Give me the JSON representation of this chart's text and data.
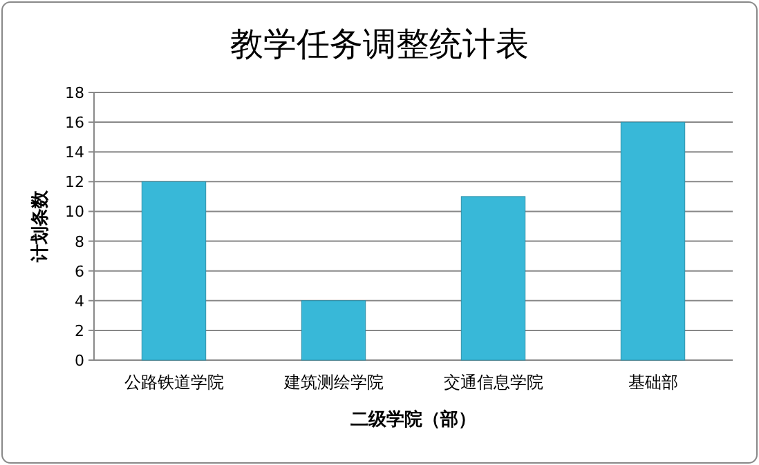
{
  "chart_data": {
    "type": "bar",
    "title": "教学任务调整统计表",
    "xlabel": "二级学院（部）",
    "ylabel": "计划条数",
    "categories": [
      "公路铁道学院",
      "建筑测绘学院",
      "交通信息学院",
      "基础部"
    ],
    "values": [
      12,
      4,
      11,
      16
    ],
    "color": "#38b8d8",
    "ylim": [
      0,
      18
    ],
    "yticks": [
      0,
      2,
      4,
      6,
      8,
      10,
      12,
      14,
      16,
      18
    ],
    "grid": "y"
  }
}
